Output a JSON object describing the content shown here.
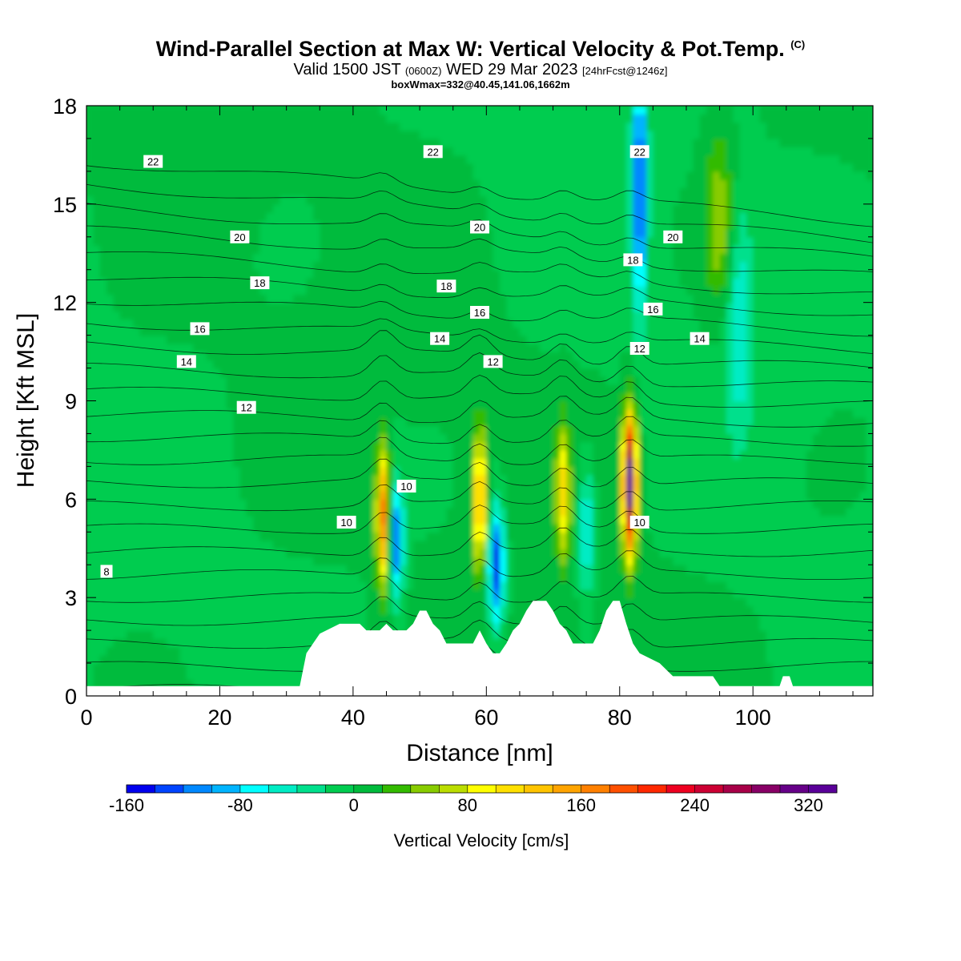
{
  "title": {
    "main": "Wind-Parallel Section at Max W: Vertical Velocity & Pot.Temp.",
    "main_suffix": "(C)",
    "valid_prefix": "Valid 1500 JST",
    "valid_utc": "(0600Z)",
    "valid_date": "WED 29 Mar 2023",
    "forecast": "[24hrFcst@1246z]",
    "box_info": "boxWmax=332@40.45,141.06,1662m"
  },
  "chart_data": {
    "type": "heatmap",
    "xlabel": "Distance [nm]",
    "ylabel": "Height [Kft MSL]",
    "xlim": [
      0,
      118
    ],
    "ylim": [
      0,
      18
    ],
    "x_ticks": [
      0,
      20,
      40,
      60,
      80,
      100
    ],
    "y_ticks": [
      0,
      3,
      6,
      9,
      12,
      15,
      18
    ],
    "colorbar": {
      "label": "Vertical Velocity [cm/s]",
      "tick_labels": [
        "-160",
        "-80",
        "0",
        "80",
        "160",
        "240",
        "320"
      ],
      "tick_values": [
        -160,
        -80,
        0,
        80,
        160,
        240,
        320
      ],
      "range": [
        -160,
        340
      ],
      "step": 20,
      "colors": [
        "#0000ee",
        "#0044ff",
        "#0088ff",
        "#00b4ff",
        "#00ffff",
        "#00ecc4",
        "#00e08c",
        "#00cc50",
        "#00bb3c",
        "#33bb00",
        "#88cc00",
        "#bbdd00",
        "#ffff00",
        "#ffe000",
        "#ffc400",
        "#ffa400",
        "#ff8000",
        "#ff5000",
        "#ff2800",
        "#ee0020",
        "#cc0033",
        "#a80048",
        "#880066",
        "#660088",
        "#5a0099"
      ]
    },
    "theta_contour_labels": [
      {
        "text": "22",
        "x": 10,
        "y": 16.3
      },
      {
        "text": "22",
        "x": 52,
        "y": 16.6
      },
      {
        "text": "22",
        "x": 83,
        "y": 16.6
      },
      {
        "text": "20",
        "x": 23,
        "y": 14.0
      },
      {
        "text": "20",
        "x": 59,
        "y": 14.3
      },
      {
        "text": "20",
        "x": 88,
        "y": 14.0
      },
      {
        "text": "18",
        "x": 26,
        "y": 12.6
      },
      {
        "text": "18",
        "x": 54,
        "y": 12.5
      },
      {
        "text": "18",
        "x": 82,
        "y": 13.3
      },
      {
        "text": "16",
        "x": 17,
        "y": 11.2
      },
      {
        "text": "16",
        "x": 59,
        "y": 11.7
      },
      {
        "text": "16",
        "x": 85,
        "y": 11.8
      },
      {
        "text": "14",
        "x": 15,
        "y": 10.2
      },
      {
        "text": "14",
        "x": 53,
        "y": 10.9
      },
      {
        "text": "14",
        "x": 92,
        "y": 10.9
      },
      {
        "text": "12",
        "x": 24,
        "y": 8.8
      },
      {
        "text": "12",
        "x": 61,
        "y": 10.2
      },
      {
        "text": "12",
        "x": 83,
        "y": 10.6
      },
      {
        "text": "10",
        "x": 39,
        "y": 5.3
      },
      {
        "text": "10",
        "x": 48,
        "y": 6.4
      },
      {
        "text": "10",
        "x": 83,
        "y": 5.3
      },
      {
        "text": "8",
        "x": 3,
        "y": 3.8
      }
    ],
    "updraft_cores": [
      {
        "x": 44.5,
        "y": 5.5,
        "w_max": 170
      },
      {
        "x": 59,
        "y": 6.0,
        "w_max": 150
      },
      {
        "x": 71.5,
        "y": 6.2,
        "w_max": 110
      },
      {
        "x": 81.5,
        "y": 6.5,
        "w_max": 332
      },
      {
        "x": 95,
        "y": 14.5,
        "w_max": 60
      }
    ],
    "downdraft_cores": [
      {
        "x": 46.5,
        "y": 4.8,
        "w_min": -120
      },
      {
        "x": 61.5,
        "y": 4.0,
        "w_min": -160
      },
      {
        "x": 75,
        "y": 5.0,
        "w_min": -80
      },
      {
        "x": 83,
        "y": 15.5,
        "w_min": -140
      },
      {
        "x": 98,
        "y": 11.5,
        "w_min": -60
      }
    ],
    "terrain": [
      [
        0,
        0.3
      ],
      [
        32,
        0.3
      ],
      [
        33,
        1.3
      ],
      [
        34,
        1.6
      ],
      [
        35,
        1.9
      ],
      [
        36,
        2.0
      ],
      [
        38,
        2.2
      ],
      [
        41,
        2.2
      ],
      [
        42,
        2.0
      ],
      [
        44,
        2.0
      ],
      [
        45,
        2.2
      ],
      [
        46,
        2.0
      ],
      [
        48,
        2.0
      ],
      [
        49,
        2.2
      ],
      [
        50,
        2.6
      ],
      [
        51,
        2.6
      ],
      [
        52,
        2.2
      ],
      [
        53,
        2.0
      ],
      [
        54,
        1.6
      ],
      [
        58,
        1.6
      ],
      [
        59,
        2.0
      ],
      [
        60,
        1.6
      ],
      [
        61,
        1.3
      ],
      [
        62,
        1.3
      ],
      [
        63,
        1.6
      ],
      [
        64,
        2.0
      ],
      [
        65,
        2.2
      ],
      [
        66,
        2.6
      ],
      [
        67,
        2.9
      ],
      [
        69,
        2.9
      ],
      [
        70,
        2.6
      ],
      [
        71,
        2.2
      ],
      [
        72,
        2.0
      ],
      [
        73,
        1.6
      ],
      [
        76,
        1.6
      ],
      [
        77,
        2.0
      ],
      [
        78,
        2.6
      ],
      [
        79,
        2.9
      ],
      [
        80,
        2.9
      ],
      [
        81,
        2.2
      ],
      [
        82,
        1.6
      ],
      [
        83,
        1.3
      ],
      [
        86,
        1.0
      ],
      [
        88,
        0.6
      ],
      [
        94,
        0.6
      ],
      [
        95,
        0.3
      ],
      [
        104,
        0.3
      ],
      [
        104.5,
        0.6
      ],
      [
        105.5,
        0.6
      ],
      [
        106,
        0.3
      ],
      [
        118,
        0.3
      ]
    ]
  }
}
